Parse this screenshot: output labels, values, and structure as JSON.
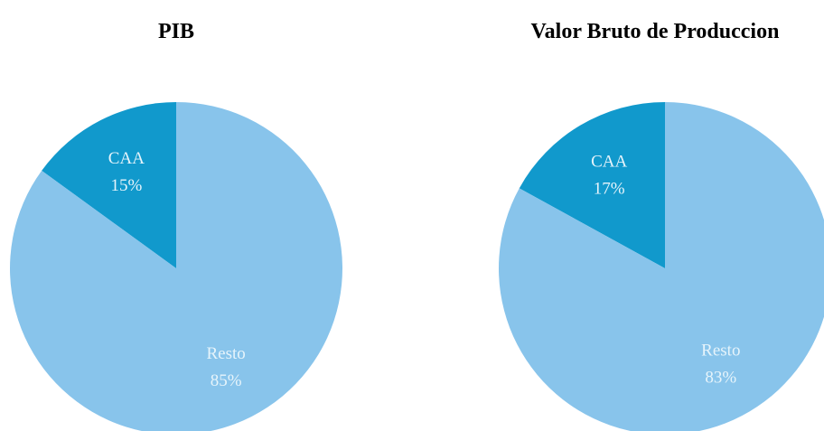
{
  "chart_data": [
    {
      "type": "pie",
      "title": "PIB",
      "categories": [
        "CAA",
        "Resto"
      ],
      "values": [
        15,
        85
      ],
      "value_labels": [
        "15%",
        "85%"
      ],
      "colors": [
        "#1199cc",
        "#88c4eb"
      ]
    },
    {
      "type": "pie",
      "title": "Valor Bruto de Produccion",
      "categories": [
        "CAA",
        "Resto"
      ],
      "values": [
        17,
        83
      ],
      "value_labels": [
        "17%",
        "83%"
      ],
      "colors": [
        "#1199cc",
        "#88c4eb"
      ]
    }
  ]
}
